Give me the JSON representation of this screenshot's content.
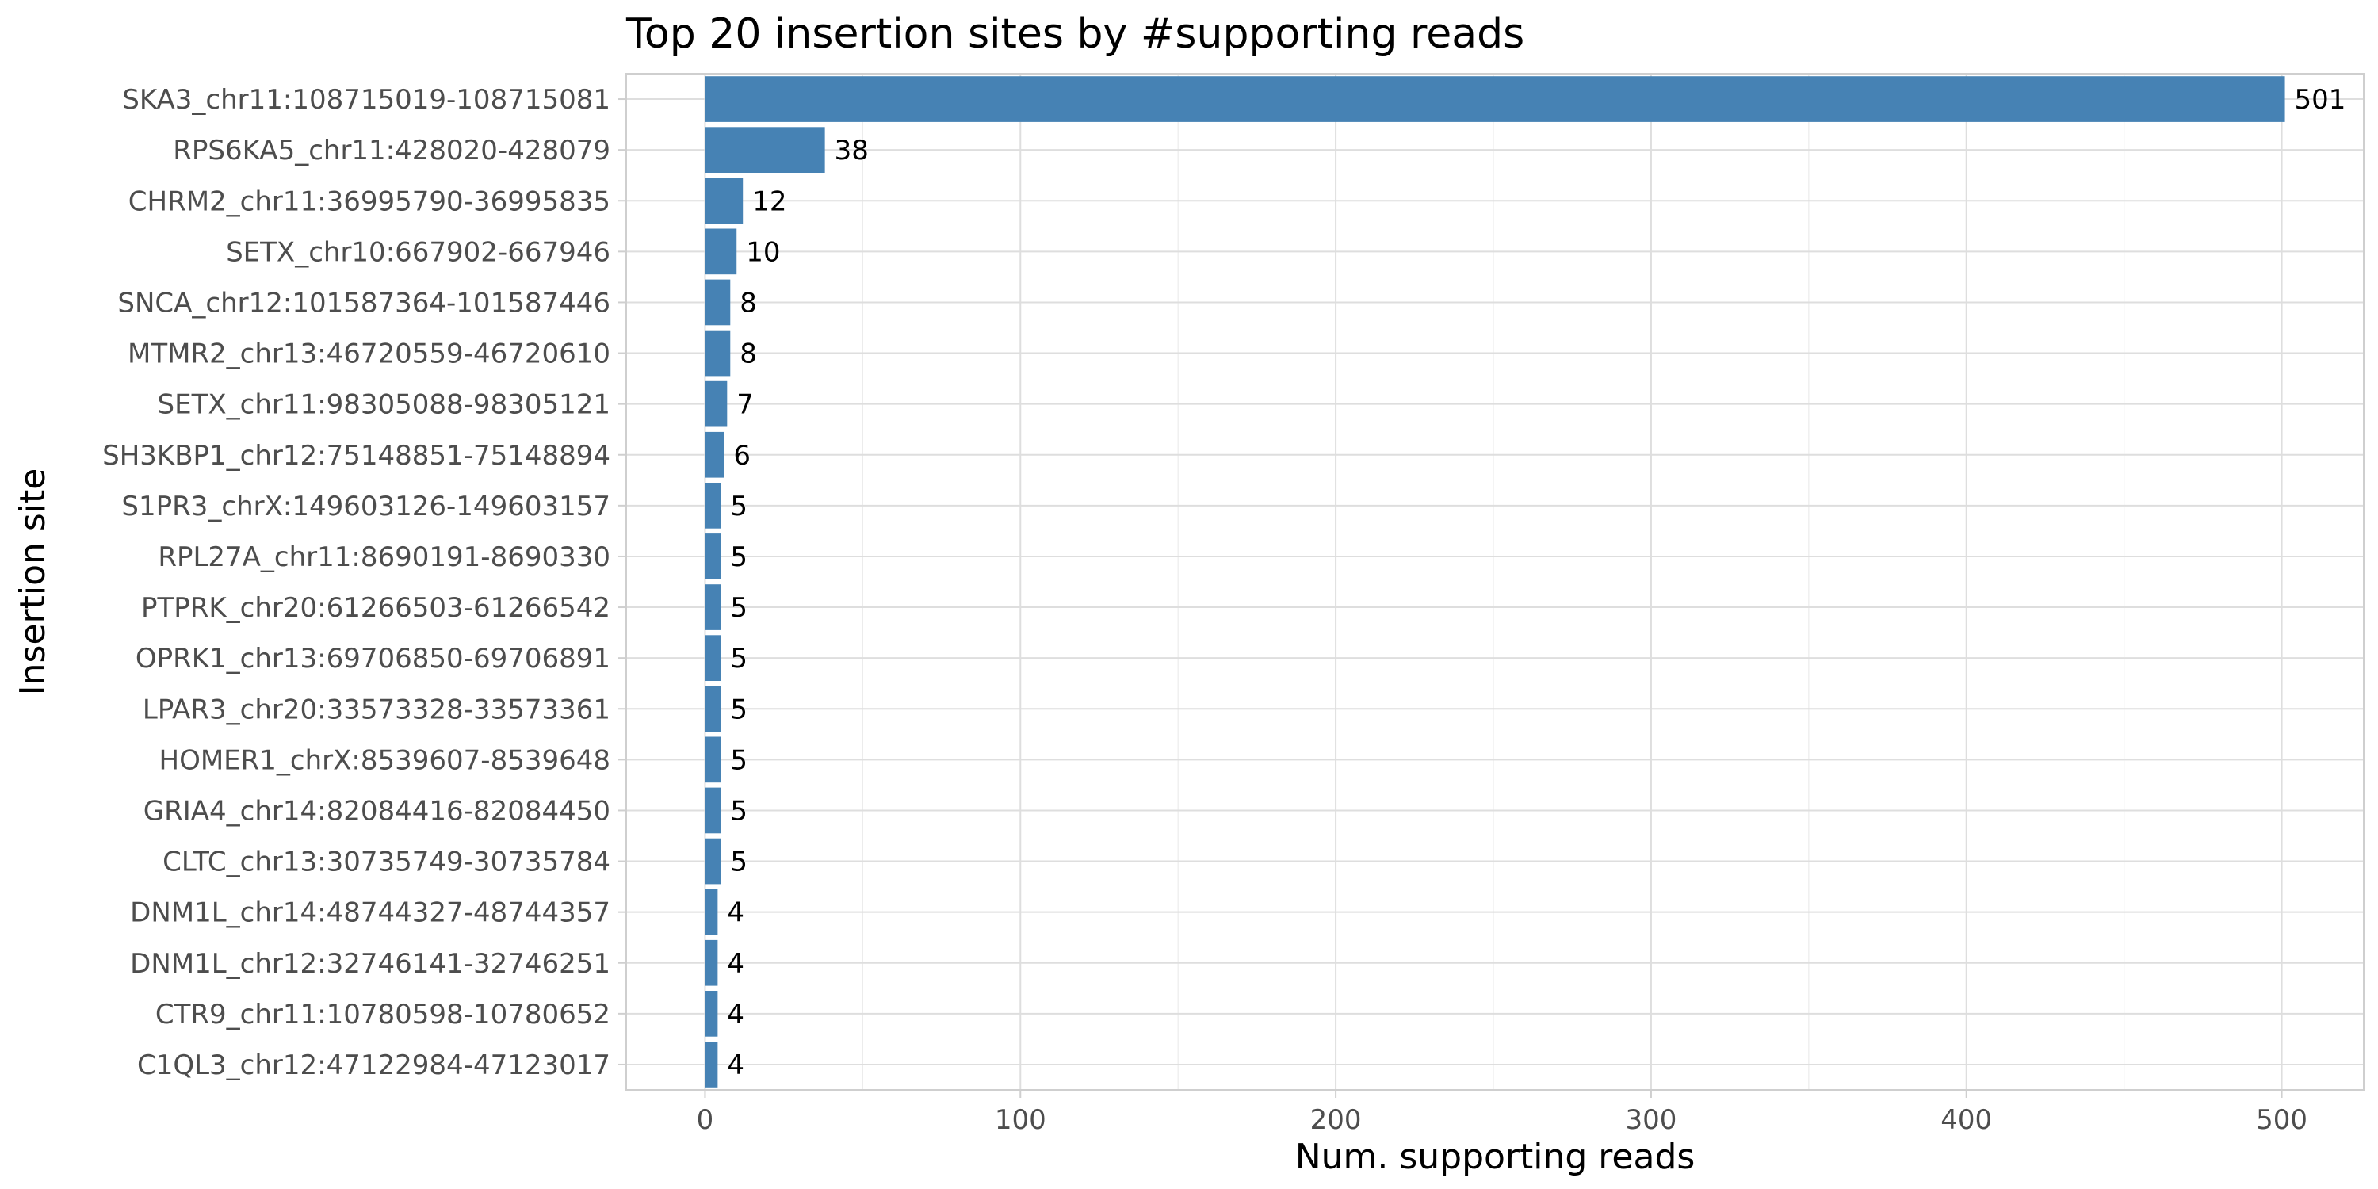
{
  "chart_data": {
    "type": "bar",
    "orientation": "horizontal",
    "title": "Top 20 insertion sites by #supporting reads",
    "xlabel": "Num. supporting reads",
    "ylabel": "Insertion site",
    "xlim": [
      -25,
      526
    ],
    "xticks": [
      0,
      100,
      200,
      300,
      400,
      500
    ],
    "grid": true,
    "bar_color": "#4682B4",
    "categories": [
      "SKA3_chr11:108715019-108715081",
      "RPS6KA5_chr11:428020-428079",
      "CHRM2_chr11:36995790-36995835",
      "SETX_chr10:667902-667946",
      "SNCA_chr12:101587364-101587446",
      "MTMR2_chr13:46720559-46720610",
      "SETX_chr11:98305088-98305121",
      "SH3KBP1_chr12:75148851-75148894",
      "S1PR3_chrX:149603126-149603157",
      "RPL27A_chr11:8690191-8690330",
      "PTPRK_chr20:61266503-61266542",
      "OPRK1_chr13:69706850-69706891",
      "LPAR3_chr20:33573328-33573361",
      "HOMER1_chrX:8539607-8539648",
      "GRIA4_chr14:82084416-82084450",
      "CLTC_chr13:30735749-30735784",
      "DNM1L_chr14:48744327-48744357",
      "DNM1L_chr12:32746141-32746251",
      "CTR9_chr11:10780598-10780652",
      "C1QL3_chr12:47122984-47123017"
    ],
    "values": [
      501,
      38,
      12,
      10,
      8,
      8,
      7,
      6,
      5,
      5,
      5,
      5,
      5,
      5,
      5,
      5,
      4,
      4,
      4,
      4
    ]
  }
}
